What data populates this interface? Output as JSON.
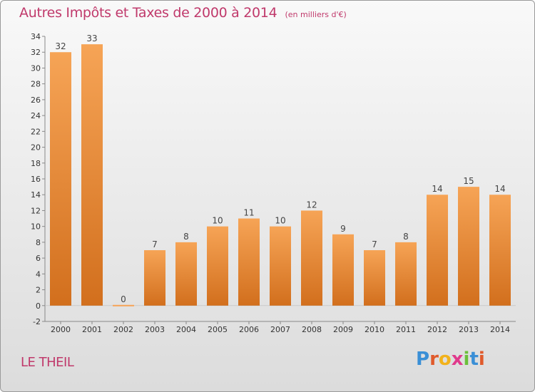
{
  "header": {
    "title": "Autres Impôts et Taxes de 2000 à 2014",
    "subtitle": "(en milliers d'€)"
  },
  "footer": {
    "location": "LE THEIL",
    "brand_letters": [
      {
        "char": "P",
        "color": "#3a8fd6"
      },
      {
        "char": "r",
        "color": "#e05a2b"
      },
      {
        "char": "o",
        "color": "#f2b21b"
      },
      {
        "char": "x",
        "color": "#e03a8c"
      },
      {
        "char": "i",
        "color": "#6bbf3a"
      },
      {
        "char": "t",
        "color": "#3a8fd6"
      },
      {
        "char": "i",
        "color": "#e05a2b"
      }
    ]
  },
  "chart_data": {
    "type": "bar",
    "title": "Autres Impôts et Taxes de 2000 à 2014",
    "subtitle": "(en milliers d'€)",
    "categories": [
      "2000",
      "2001",
      "2002",
      "2003",
      "2004",
      "2005",
      "2006",
      "2007",
      "2008",
      "2009",
      "2010",
      "2011",
      "2012",
      "2013",
      "2014"
    ],
    "values": [
      32,
      33,
      0,
      7,
      8,
      10,
      11,
      10,
      12,
      9,
      7,
      8,
      14,
      15,
      14
    ],
    "ylim": [
      -2,
      34
    ],
    "yticks": [
      -2,
      0,
      2,
      4,
      6,
      8,
      10,
      12,
      14,
      16,
      18,
      20,
      22,
      24,
      26,
      28,
      30,
      32,
      34
    ],
    "xlabel": "",
    "ylabel": "",
    "grid": false,
    "bar_color_top": "#f6a456",
    "bar_color_bottom": "#d26f1d"
  }
}
